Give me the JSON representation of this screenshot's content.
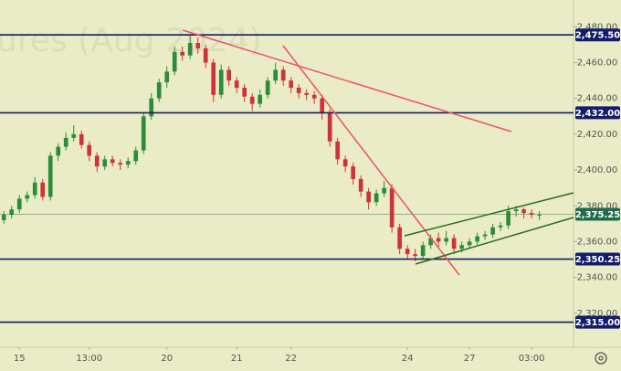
{
  "chart_data": {
    "type": "candlestick",
    "watermark": "ures (Aug 2024)",
    "ohlc": [
      [
        2372,
        2377,
        2370,
        2375
      ],
      [
        2375,
        2380,
        2373,
        2378
      ],
      [
        2378,
        2386,
        2376,
        2384
      ],
      [
        2384,
        2388,
        2382,
        2386
      ],
      [
        2386,
        2396,
        2384,
        2393
      ],
      [
        2393,
        2395,
        2383,
        2385
      ],
      [
        2385,
        2410,
        2383,
        2408
      ],
      [
        2408,
        2415,
        2405,
        2413
      ],
      [
        2413,
        2421,
        2411,
        2418
      ],
      [
        2418,
        2425,
        2416,
        2420
      ],
      [
        2420,
        2422,
        2412,
        2414
      ],
      [
        2414,
        2416,
        2405,
        2408
      ],
      [
        2408,
        2410,
        2399,
        2402
      ],
      [
        2402,
        2408,
        2400,
        2406
      ],
      [
        2406,
        2408,
        2402,
        2404
      ],
      [
        2404,
        2406,
        2400,
        2403
      ],
      [
        2403,
        2407,
        2401,
        2405
      ],
      [
        2405,
        2413,
        2403,
        2411
      ],
      [
        2411,
        2432,
        2409,
        2430
      ],
      [
        2430,
        2443,
        2428,
        2440
      ],
      [
        2440,
        2451,
        2438,
        2449
      ],
      [
        2449,
        2458,
        2446,
        2455
      ],
      [
        2455,
        2469,
        2453,
        2466
      ],
      [
        2466,
        2469,
        2461,
        2464
      ],
      [
        2464,
        2475,
        2462,
        2471
      ],
      [
        2471,
        2474,
        2465,
        2468
      ],
      [
        2468,
        2470,
        2457,
        2460
      ],
      [
        2460,
        2462,
        2438,
        2442
      ],
      [
        2442,
        2459,
        2440,
        2456
      ],
      [
        2456,
        2458,
        2447,
        2450
      ],
      [
        2450,
        2452,
        2443,
        2446
      ],
      [
        2446,
        2448,
        2438,
        2441
      ],
      [
        2441,
        2443,
        2433,
        2437
      ],
      [
        2437,
        2445,
        2435,
        2442
      ],
      [
        2442,
        2452,
        2440,
        2450
      ],
      [
        2450,
        2460,
        2448,
        2456
      ],
      [
        2456,
        2458,
        2447,
        2450
      ],
      [
        2450,
        2452,
        2443,
        2446
      ],
      [
        2446,
        2448,
        2440,
        2443
      ],
      [
        2443,
        2445,
        2439,
        2442
      ],
      [
        2442,
        2444,
        2437,
        2440
      ],
      [
        2440,
        2442,
        2428,
        2432
      ],
      [
        2432,
        2434,
        2413,
        2416
      ],
      [
        2416,
        2418,
        2403,
        2406
      ],
      [
        2406,
        2408,
        2399,
        2402
      ],
      [
        2402,
        2404,
        2392,
        2395
      ],
      [
        2395,
        2397,
        2385,
        2388
      ],
      [
        2388,
        2390,
        2378,
        2382
      ],
      [
        2382,
        2389,
        2380,
        2387
      ],
      [
        2387,
        2394,
        2385,
        2390
      ],
      [
        2390,
        2392,
        2365,
        2368
      ],
      [
        2368,
        2370,
        2353,
        2356
      ],
      [
        2356,
        2358,
        2350,
        2353
      ],
      [
        2353,
        2356,
        2349,
        2352
      ],
      [
        2352,
        2360,
        2350,
        2358
      ],
      [
        2358,
        2364,
        2356,
        2362
      ],
      [
        2362,
        2365,
        2357,
        2360
      ],
      [
        2360,
        2366,
        2358,
        2362
      ],
      [
        2362,
        2364,
        2353,
        2356
      ],
      [
        2356,
        2360,
        2354,
        2358
      ],
      [
        2358,
        2362,
        2356,
        2360
      ],
      [
        2360,
        2365,
        2358,
        2363
      ],
      [
        2363,
        2366,
        2361,
        2364
      ],
      [
        2364,
        2370,
        2362,
        2368
      ],
      [
        2368,
        2371,
        2366,
        2369
      ],
      [
        2369,
        2380,
        2367,
        2377
      ],
      [
        2377,
        2380,
        2374,
        2378
      ],
      [
        2378,
        2379,
        2373,
        2376
      ],
      [
        2376,
        2378,
        2373,
        2375
      ],
      [
        2375,
        2377,
        2372,
        2375
      ]
    ],
    "up_color": "#2e8b3a",
    "down_color": "#d0313a",
    "xlim": [
      -0.5,
      73.4
    ],
    "xticks": [
      {
        "value": 2,
        "label": "15"
      },
      {
        "value": 11,
        "label": "13:00"
      },
      {
        "value": 21,
        "label": "20"
      },
      {
        "value": 30,
        "label": "21"
      },
      {
        "value": 37,
        "label": "22"
      },
      {
        "value": 52,
        "label": "24"
      },
      {
        "value": 60,
        "label": "27"
      },
      {
        "value": 68,
        "label": "03:00"
      }
    ],
    "ylim": [
      2301,
      2495
    ],
    "yticks": [
      {
        "value": 2480,
        "label": "2,480.00"
      },
      {
        "value": 2460,
        "label": "2,460.00"
      },
      {
        "value": 2440,
        "label": "2,440.00"
      },
      {
        "value": 2420,
        "label": "2,420.00"
      },
      {
        "value": 2400,
        "label": "2,400.00"
      },
      {
        "value": 2380,
        "label": "2,380.00"
      },
      {
        "value": 2360,
        "label": "2,360.00"
      },
      {
        "value": 2340,
        "label": "2,340.00"
      },
      {
        "value": 2320,
        "label": "2,320.00"
      }
    ],
    "levels": [
      {
        "value": 2475.5,
        "label": "2,475.50",
        "color": "#131c6b"
      },
      {
        "value": 2432,
        "label": "2,432.00",
        "color": "#131c6b"
      },
      {
        "value": 2350.25,
        "label": "2,350.25",
        "color": "#131c6b"
      },
      {
        "value": 2315,
        "label": "2,315.00",
        "color": "#131c6b"
      },
      {
        "value": 2375.25,
        "label": "2,375.25",
        "color": "#1f6b4a"
      }
    ]
  }
}
